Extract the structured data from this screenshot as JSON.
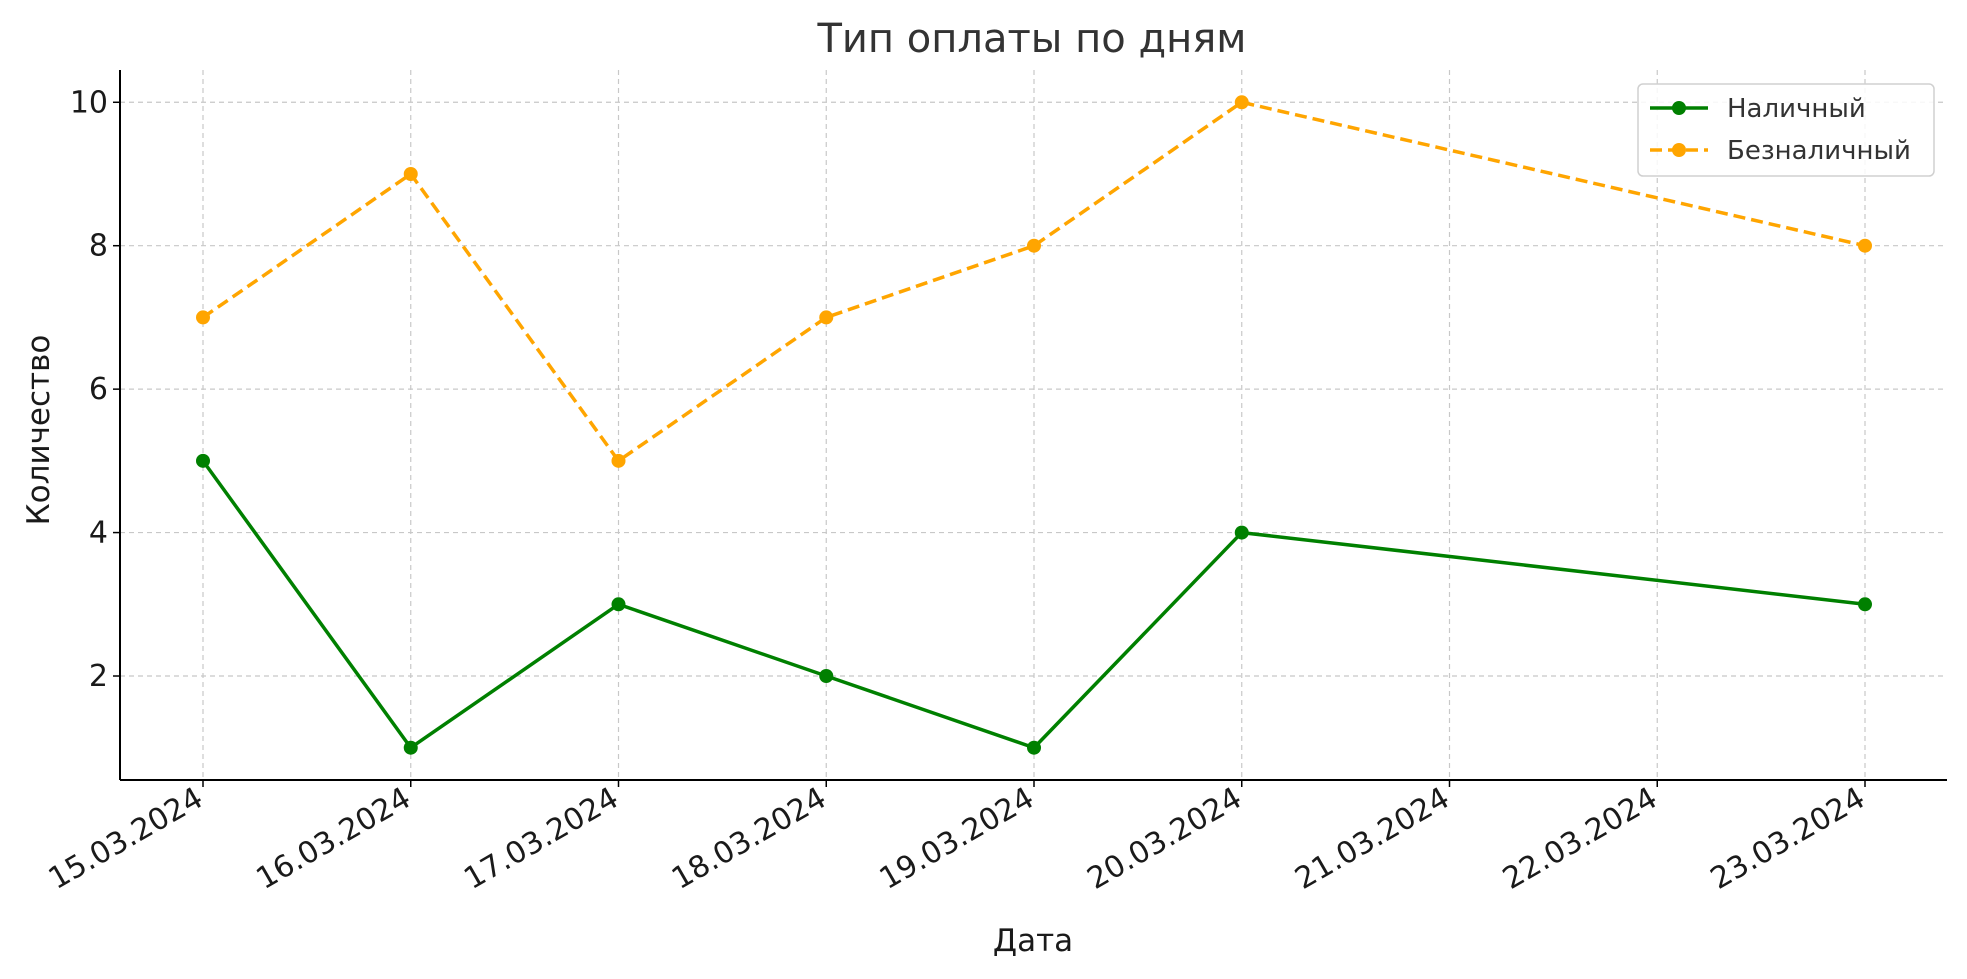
{
  "chart_data": {
    "type": "line",
    "title": "Тип оплаты по дням",
    "xlabel": "Дата",
    "ylabel": "Количество",
    "x_ticks": [
      "15.03.2024",
      "16.03.2024",
      "17.03.2024",
      "18.03.2024",
      "19.03.2024",
      "20.03.2024",
      "21.03.2024",
      "22.03.2024",
      "23.03.2024"
    ],
    "y_ticks": [
      2,
      4,
      6,
      8,
      10
    ],
    "ylim": [
      0.55,
      10.45
    ],
    "grid": true,
    "legend_position": "top-right",
    "series": [
      {
        "name": "Наличный",
        "color": "#008000",
        "style": "solid",
        "x": [
          "15.03.2024",
          "16.03.2024",
          "17.03.2024",
          "18.03.2024",
          "19.03.2024",
          "20.03.2024",
          "23.03.2024"
        ],
        "values": [
          5,
          1,
          3,
          2,
          1,
          4,
          3
        ]
      },
      {
        "name": "Безналичный",
        "color": "#FFA500",
        "style": "dashed",
        "x": [
          "15.03.2024",
          "16.03.2024",
          "17.03.2024",
          "18.03.2024",
          "19.03.2024",
          "20.03.2024",
          "23.03.2024"
        ],
        "values": [
          7,
          9,
          5,
          7,
          8,
          10,
          8
        ]
      }
    ]
  }
}
